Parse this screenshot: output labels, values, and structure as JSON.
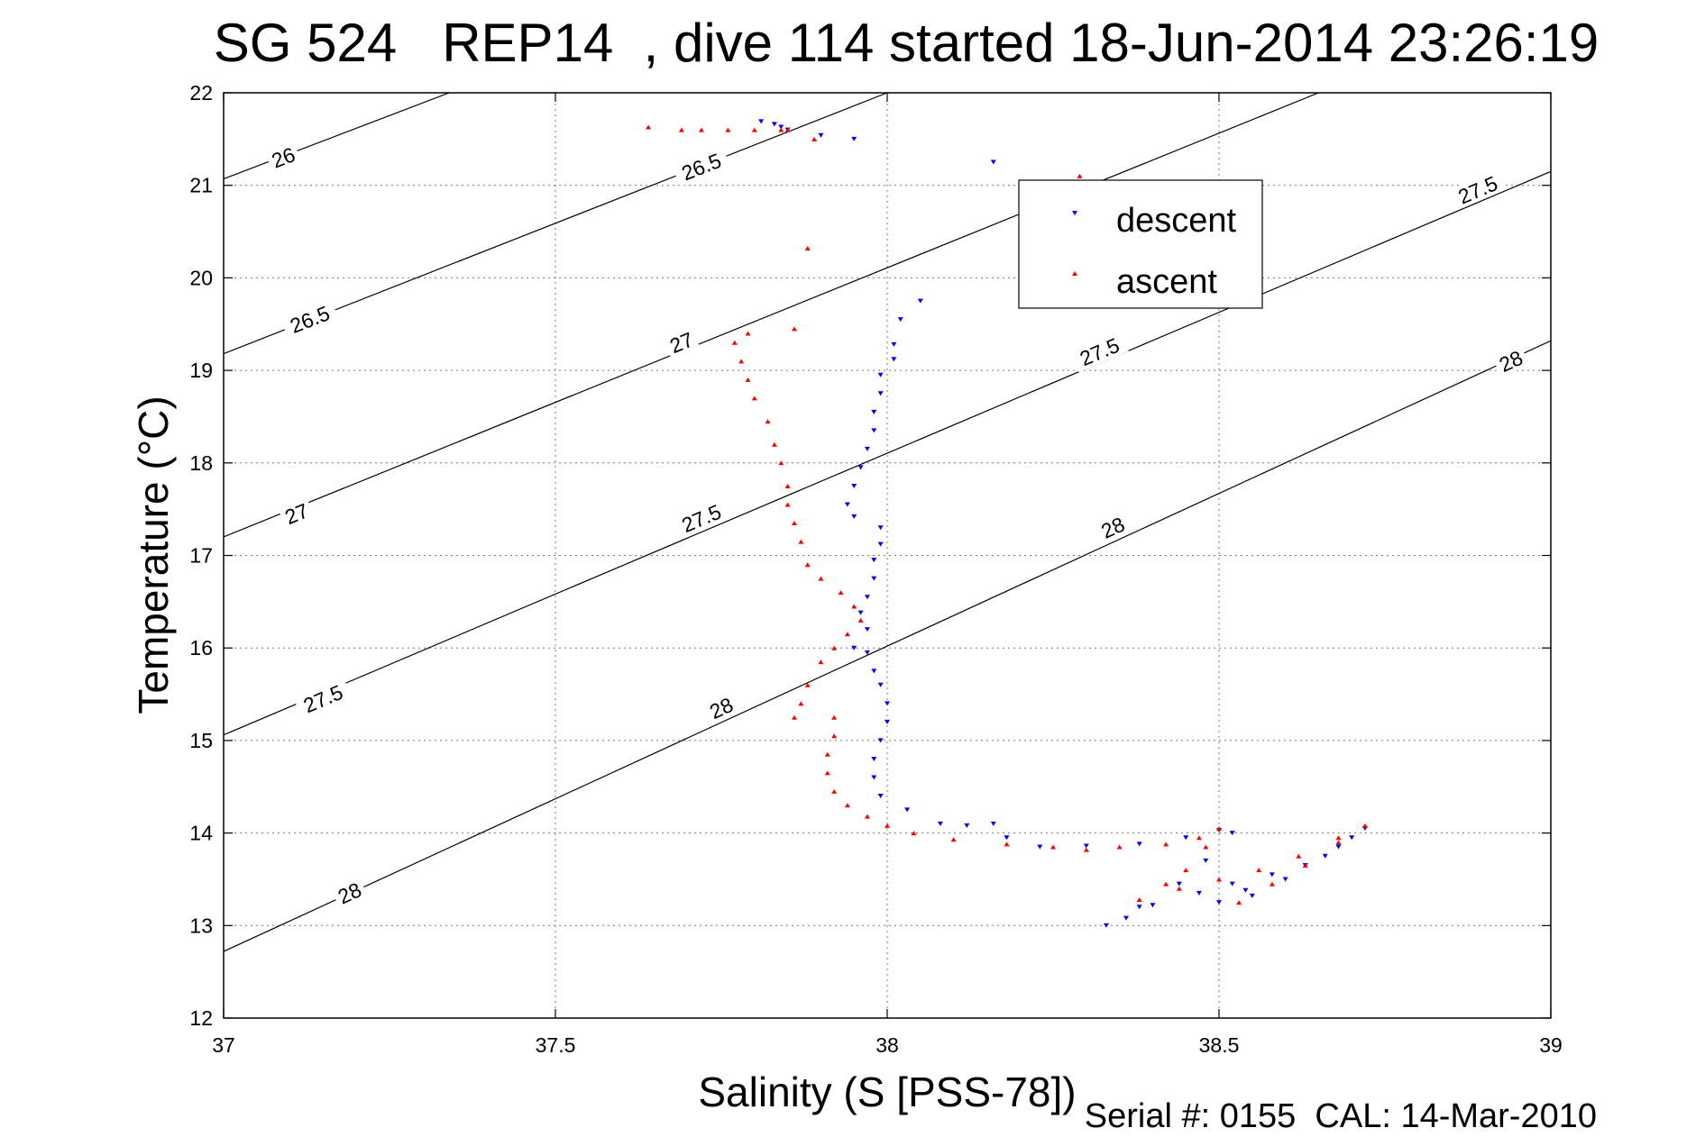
{
  "chart_data": {
    "type": "scatter",
    "title": "SG 524   REP14  , dive 114 started 18-Jun-2014 23:26:19",
    "xlabel": "Salinity (S [PSS-78])",
    "ylabel": "Temperature (°C)",
    "footer": "Serial #: 0155  CAL: 14-Mar-2010",
    "xlim": [
      37,
      39
    ],
    "ylim": [
      12,
      22
    ],
    "grid": true,
    "legend_position": "top-right",
    "x_ticks": [
      37,
      37.5,
      38,
      38.5,
      39
    ],
    "x_tick_labels": [
      "37",
      "37.5",
      "38",
      "38.5",
      "39"
    ],
    "y_ticks": [
      12,
      13,
      14,
      15,
      16,
      17,
      18,
      19,
      20,
      21,
      22
    ],
    "y_tick_labels": [
      "12",
      "13",
      "14",
      "15",
      "16",
      "17",
      "18",
      "19",
      "20",
      "21",
      "22"
    ],
    "colors": {
      "descent": "#0000ff",
      "ascent": "#ff0000",
      "contour": "#000000",
      "grid": "#777777"
    },
    "contours": [
      {
        "label": "26",
        "points": [
          [
            37.0,
            21.07
          ],
          [
            37.34,
            22.0
          ]
        ],
        "label_at": [
          [
            37.09,
            21.3
          ]
        ]
      },
      {
        "label": "26.5",
        "points": [
          [
            37.0,
            19.18
          ],
          [
            38.0,
            22.0
          ]
        ],
        "label_at": [
          [
            37.13,
            19.55
          ],
          [
            37.72,
            21.2
          ]
        ]
      },
      {
        "label": "27",
        "points": [
          [
            37.0,
            17.2
          ],
          [
            38.65,
            22.0
          ]
        ],
        "label_at": [
          [
            37.11,
            17.45
          ],
          [
            37.69,
            19.3
          ]
        ]
      },
      {
        "label": "27.5",
        "points": [
          [
            37.0,
            15.06
          ],
          [
            39.0,
            21.15
          ]
        ],
        "label_at": [
          [
            37.15,
            15.45
          ],
          [
            37.72,
            17.4
          ],
          [
            38.32,
            19.2
          ],
          [
            38.89,
            20.95
          ]
        ]
      },
      {
        "label": "28",
        "points": [
          [
            37.0,
            12.72
          ],
          [
            39.0,
            19.32
          ]
        ],
        "label_at": [
          [
            37.19,
            13.35
          ],
          [
            37.75,
            15.35
          ],
          [
            38.34,
            17.3
          ],
          [
            38.94,
            19.1
          ]
        ]
      }
    ],
    "series": [
      {
        "name": "descent",
        "marker": "triangle-down",
        "points": [
          [
            37.81,
            21.69
          ],
          [
            37.83,
            21.66
          ],
          [
            37.84,
            21.63
          ],
          [
            37.85,
            21.6
          ],
          [
            37.9,
            21.54
          ],
          [
            37.95,
            21.5
          ],
          [
            38.16,
            21.25
          ],
          [
            38.05,
            19.75
          ],
          [
            38.02,
            19.55
          ],
          [
            38.01,
            19.28
          ],
          [
            38.01,
            19.12
          ],
          [
            37.99,
            18.95
          ],
          [
            37.99,
            18.75
          ],
          [
            37.98,
            18.55
          ],
          [
            37.98,
            18.35
          ],
          [
            37.97,
            18.15
          ],
          [
            37.96,
            17.95
          ],
          [
            37.95,
            17.75
          ],
          [
            37.94,
            17.55
          ],
          [
            37.95,
            17.42
          ],
          [
            37.99,
            17.3
          ],
          [
            37.99,
            17.12
          ],
          [
            37.98,
            16.95
          ],
          [
            37.98,
            16.75
          ],
          [
            37.97,
            16.55
          ],
          [
            37.96,
            16.38
          ],
          [
            37.97,
            16.2
          ],
          [
            37.95,
            16.0
          ],
          [
            37.97,
            15.95
          ],
          [
            37.98,
            15.75
          ],
          [
            37.99,
            15.6
          ],
          [
            38.0,
            15.4
          ],
          [
            38.0,
            15.2
          ],
          [
            37.99,
            15.0
          ],
          [
            37.98,
            14.8
          ],
          [
            37.98,
            14.6
          ],
          [
            37.99,
            14.4
          ],
          [
            38.03,
            14.25
          ],
          [
            38.08,
            14.1
          ],
          [
            38.12,
            14.08
          ],
          [
            38.16,
            14.1
          ],
          [
            38.18,
            13.95
          ],
          [
            38.23,
            13.85
          ],
          [
            38.3,
            13.86
          ],
          [
            38.38,
            13.88
          ],
          [
            38.45,
            13.95
          ],
          [
            38.5,
            14.03
          ],
          [
            38.52,
            14.0
          ],
          [
            38.48,
            13.7
          ],
          [
            38.44,
            13.45
          ],
          [
            38.38,
            13.2
          ],
          [
            38.33,
            13.0
          ],
          [
            38.36,
            13.08
          ],
          [
            38.4,
            13.22
          ],
          [
            38.47,
            13.35
          ],
          [
            38.52,
            13.45
          ],
          [
            38.58,
            13.55
          ],
          [
            38.63,
            13.65
          ],
          [
            38.68,
            13.85
          ],
          [
            38.72,
            14.05
          ],
          [
            38.7,
            13.95
          ],
          [
            38.66,
            13.75
          ],
          [
            38.6,
            13.5
          ],
          [
            38.55,
            13.32
          ],
          [
            38.54,
            13.38
          ],
          [
            38.5,
            13.25
          ]
        ]
      },
      {
        "name": "ascent",
        "marker": "triangle-up",
        "points": [
          [
            37.64,
            21.63
          ],
          [
            37.69,
            21.6
          ],
          [
            37.72,
            21.6
          ],
          [
            37.76,
            21.6
          ],
          [
            37.8,
            21.6
          ],
          [
            37.84,
            21.6
          ],
          [
            37.85,
            21.6
          ],
          [
            37.89,
            21.5
          ],
          [
            38.29,
            21.1
          ],
          [
            37.88,
            20.32
          ],
          [
            37.86,
            19.45
          ],
          [
            37.79,
            19.4
          ],
          [
            37.77,
            19.3
          ],
          [
            37.78,
            19.1
          ],
          [
            37.79,
            18.9
          ],
          [
            37.8,
            18.7
          ],
          [
            37.82,
            18.45
          ],
          [
            37.83,
            18.2
          ],
          [
            37.84,
            18.0
          ],
          [
            37.85,
            17.75
          ],
          [
            37.85,
            17.55
          ],
          [
            37.86,
            17.35
          ],
          [
            37.87,
            17.15
          ],
          [
            37.88,
            16.9
          ],
          [
            37.9,
            16.75
          ],
          [
            37.93,
            16.6
          ],
          [
            37.95,
            16.45
          ],
          [
            37.96,
            16.3
          ],
          [
            37.94,
            16.15
          ],
          [
            37.92,
            16.0
          ],
          [
            37.9,
            15.85
          ],
          [
            37.88,
            15.6
          ],
          [
            37.87,
            15.4
          ],
          [
            37.86,
            15.25
          ],
          [
            37.92,
            15.25
          ],
          [
            37.92,
            15.05
          ],
          [
            37.91,
            14.85
          ],
          [
            37.91,
            14.65
          ],
          [
            37.92,
            14.45
          ],
          [
            37.94,
            14.3
          ],
          [
            37.97,
            14.18
          ],
          [
            38.0,
            14.08
          ],
          [
            38.04,
            14.0
          ],
          [
            38.1,
            13.93
          ],
          [
            38.18,
            13.88
          ],
          [
            38.25,
            13.85
          ],
          [
            38.3,
            13.82
          ],
          [
            38.35,
            13.85
          ],
          [
            38.42,
            13.88
          ],
          [
            38.47,
            13.95
          ],
          [
            38.5,
            14.05
          ],
          [
            38.48,
            13.85
          ],
          [
            38.45,
            13.6
          ],
          [
            38.42,
            13.45
          ],
          [
            38.38,
            13.28
          ],
          [
            38.44,
            13.4
          ],
          [
            38.5,
            13.5
          ],
          [
            38.56,
            13.6
          ],
          [
            38.62,
            13.75
          ],
          [
            38.68,
            13.95
          ],
          [
            38.72,
            14.08
          ],
          [
            38.68,
            13.9
          ],
          [
            38.63,
            13.65
          ],
          [
            38.58,
            13.45
          ],
          [
            38.53,
            13.25
          ]
        ]
      }
    ]
  }
}
